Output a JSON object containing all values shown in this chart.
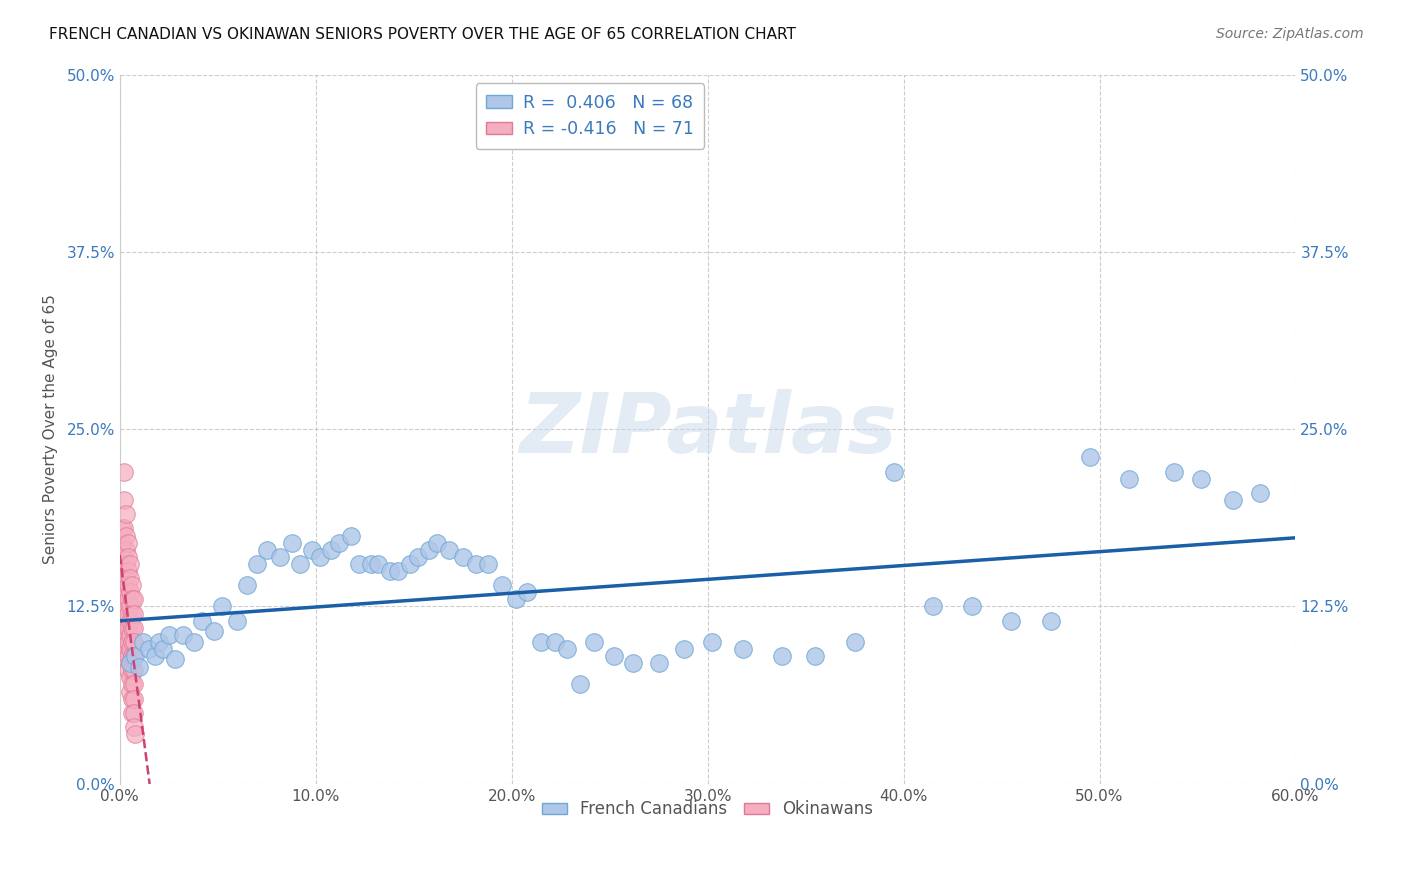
{
  "title": "FRENCH CANADIAN VS OKINAWAN SENIORS POVERTY OVER THE AGE OF 65 CORRELATION CHART",
  "source": "Source: ZipAtlas.com",
  "ylabel": "Seniors Poverty Over the Age of 65",
  "xlim": [
    0.0,
    0.6
  ],
  "ylim": [
    0.0,
    0.5
  ],
  "xticks": [
    0.0,
    0.1,
    0.2,
    0.3,
    0.4,
    0.5,
    0.6
  ],
  "xticklabels": [
    "0.0%",
    "10.0%",
    "20.0%",
    "30.0%",
    "40.0%",
    "50.0%",
    "60.0%"
  ],
  "yticks": [
    0.0,
    0.125,
    0.25,
    0.375,
    0.5
  ],
  "yticklabels": [
    "0.0%",
    "12.5%",
    "25.0%",
    "37.5%",
    "50.0%"
  ],
  "blue_R": 0.406,
  "blue_N": 68,
  "pink_R": -0.416,
  "pink_N": 71,
  "blue_color": "#aec6e8",
  "blue_edge_color": "#6fa8d6",
  "blue_line_color": "#1a5fa8",
  "pink_color": "#f5adc0",
  "pink_edge_color": "#e07898",
  "pink_line_color": "#d04070",
  "watermark": "ZIPatlas",
  "legend_label_blue": "French Canadians",
  "legend_label_pink": "Okinawans",
  "blue_x": [
    0.005,
    0.008,
    0.01,
    0.012,
    0.015,
    0.018,
    0.02,
    0.022,
    0.025,
    0.028,
    0.032,
    0.038,
    0.042,
    0.048,
    0.052,
    0.06,
    0.065,
    0.07,
    0.075,
    0.082,
    0.088,
    0.092,
    0.098,
    0.102,
    0.108,
    0.112,
    0.118,
    0.122,
    0.128,
    0.132,
    0.138,
    0.142,
    0.148,
    0.152,
    0.158,
    0.162,
    0.168,
    0.175,
    0.182,
    0.188,
    0.195,
    0.202,
    0.208,
    0.215,
    0.222,
    0.228,
    0.235,
    0.242,
    0.252,
    0.262,
    0.275,
    0.288,
    0.302,
    0.318,
    0.338,
    0.355,
    0.375,
    0.395,
    0.415,
    0.435,
    0.455,
    0.475,
    0.495,
    0.515,
    0.538,
    0.552,
    0.568,
    0.582
  ],
  "blue_y": [
    0.085,
    0.09,
    0.082,
    0.1,
    0.095,
    0.09,
    0.1,
    0.095,
    0.105,
    0.088,
    0.105,
    0.1,
    0.115,
    0.108,
    0.125,
    0.115,
    0.14,
    0.155,
    0.165,
    0.16,
    0.17,
    0.155,
    0.165,
    0.16,
    0.165,
    0.17,
    0.175,
    0.155,
    0.155,
    0.155,
    0.15,
    0.15,
    0.155,
    0.16,
    0.165,
    0.17,
    0.165,
    0.16,
    0.155,
    0.155,
    0.14,
    0.13,
    0.135,
    0.1,
    0.1,
    0.095,
    0.07,
    0.1,
    0.09,
    0.085,
    0.085,
    0.095,
    0.1,
    0.095,
    0.09,
    0.09,
    0.1,
    0.22,
    0.125,
    0.125,
    0.115,
    0.115,
    0.23,
    0.215,
    0.22,
    0.215,
    0.2,
    0.205
  ],
  "pink_x": [
    0.001,
    0.001,
    0.001,
    0.001,
    0.001,
    0.001,
    0.001,
    0.001,
    0.001,
    0.001,
    0.002,
    0.002,
    0.002,
    0.002,
    0.002,
    0.002,
    0.002,
    0.002,
    0.002,
    0.002,
    0.003,
    0.003,
    0.003,
    0.003,
    0.003,
    0.003,
    0.003,
    0.003,
    0.003,
    0.003,
    0.004,
    0.004,
    0.004,
    0.004,
    0.004,
    0.004,
    0.004,
    0.004,
    0.004,
    0.004,
    0.005,
    0.005,
    0.005,
    0.005,
    0.005,
    0.005,
    0.005,
    0.005,
    0.005,
    0.005,
    0.006,
    0.006,
    0.006,
    0.006,
    0.006,
    0.006,
    0.006,
    0.006,
    0.006,
    0.006,
    0.007,
    0.007,
    0.007,
    0.007,
    0.007,
    0.007,
    0.007,
    0.007,
    0.007,
    0.007,
    0.008
  ],
  "pink_y": [
    0.18,
    0.17,
    0.16,
    0.15,
    0.14,
    0.13,
    0.12,
    0.11,
    0.1,
    0.09,
    0.22,
    0.2,
    0.18,
    0.16,
    0.14,
    0.13,
    0.12,
    0.11,
    0.1,
    0.09,
    0.19,
    0.175,
    0.165,
    0.155,
    0.145,
    0.135,
    0.125,
    0.115,
    0.105,
    0.095,
    0.17,
    0.16,
    0.15,
    0.14,
    0.13,
    0.12,
    0.11,
    0.1,
    0.09,
    0.08,
    0.155,
    0.145,
    0.135,
    0.125,
    0.115,
    0.105,
    0.095,
    0.085,
    0.075,
    0.065,
    0.14,
    0.13,
    0.12,
    0.11,
    0.1,
    0.09,
    0.08,
    0.07,
    0.06,
    0.05,
    0.13,
    0.12,
    0.11,
    0.1,
    0.09,
    0.08,
    0.07,
    0.06,
    0.05,
    0.04,
    0.035
  ],
  "blue_trend_x": [
    0.0,
    0.6
  ],
  "blue_trend_y": [
    0.085,
    0.215
  ],
  "pink_trend_x": [
    0.0,
    0.008
  ],
  "pink_trend_y": [
    0.155,
    0.035
  ]
}
